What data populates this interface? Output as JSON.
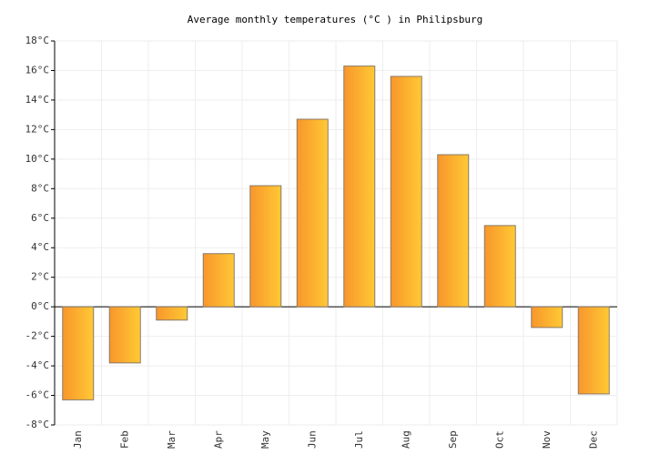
{
  "chart_data": {
    "type": "bar",
    "title": "Average monthly temperatures (°C ) in Philipsburg",
    "categories": [
      "Jan",
      "Feb",
      "Mar",
      "Apr",
      "May",
      "Jun",
      "Jul",
      "Aug",
      "Sep",
      "Oct",
      "Nov",
      "Dec"
    ],
    "values": [
      -6.3,
      -3.8,
      -0.9,
      3.6,
      8.2,
      12.7,
      16.3,
      15.6,
      10.3,
      5.5,
      -1.4,
      -5.9
    ],
    "gradient": [
      "#f8962c",
      "#ffc934"
    ],
    "bar_border": "#8a7a6a",
    "ylim": [
      -8,
      18
    ],
    "yticks": [
      {
        "value": -8,
        "label": "-8°C"
      },
      {
        "value": -6,
        "label": "-6°C"
      },
      {
        "value": -4,
        "label": "-4°C"
      },
      {
        "value": -2,
        "label": "-2°C"
      },
      {
        "value": 0,
        "label": "0°C"
      },
      {
        "value": 2,
        "label": "2°C"
      },
      {
        "value": 4,
        "label": "4°C"
      },
      {
        "value": 6,
        "label": "6°C"
      },
      {
        "value": 8,
        "label": "8°C"
      },
      {
        "value": 10,
        "label": "10°C"
      },
      {
        "value": 12,
        "label": "12°C"
      },
      {
        "value": 14,
        "label": "14°C"
      },
      {
        "value": 16,
        "label": "16°C"
      },
      {
        "value": 18,
        "label": "18°C"
      }
    ],
    "grid": true
  }
}
